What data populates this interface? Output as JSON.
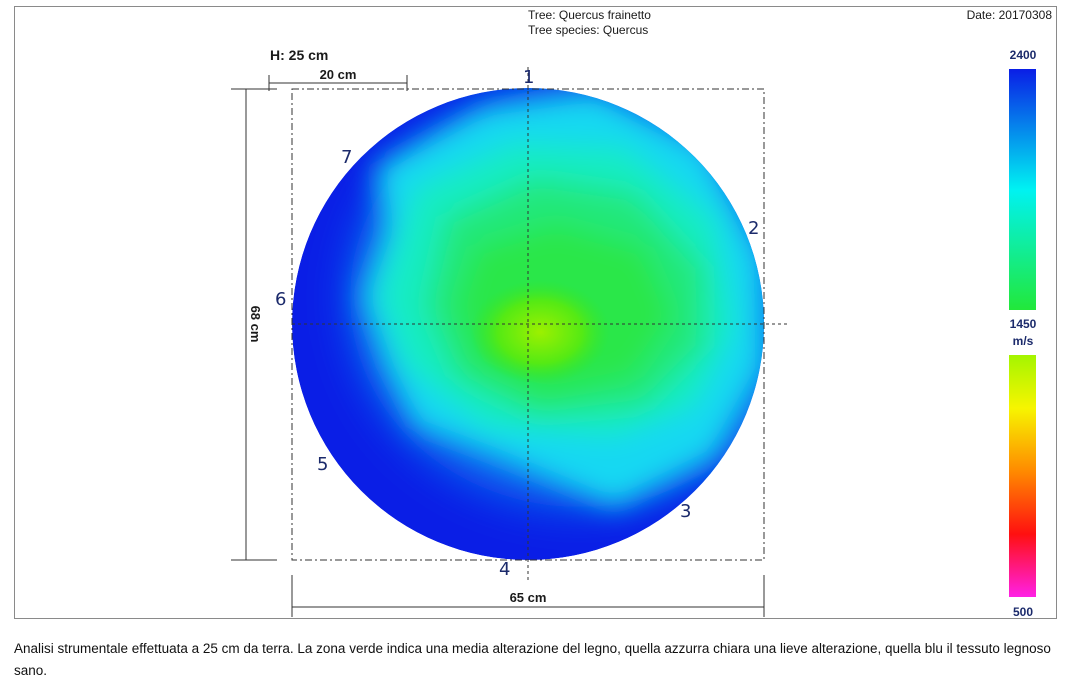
{
  "header": {
    "tree_label": "Tree: Quercus frainetto",
    "species_label": "Tree species: Quercus",
    "date_label": "Date: 20170308"
  },
  "dimensions": {
    "height_label": "H: 25 cm",
    "scale_label": "20 cm",
    "vertical_label": "68 cm",
    "horizontal_label": "65 cm"
  },
  "sensors": [
    {
      "label": "1"
    },
    {
      "label": "2"
    },
    {
      "label": "3"
    },
    {
      "label": "4"
    },
    {
      "label": "5"
    },
    {
      "label": "6"
    },
    {
      "label": "7"
    }
  ],
  "legend": {
    "max": "2400",
    "mid": "1450",
    "unit": "m/s",
    "min": "500",
    "colors": {
      "dark_blue": "#0a1ee6",
      "cyan": "#00f2f2",
      "green": "#22e83a",
      "yellow_green": "#a4f500",
      "yellow": "#f7f500",
      "orange": "#ff8a00",
      "red": "#ff1010",
      "magenta": "#ff20e6"
    }
  },
  "caption": "Analisi strumentale effettuata a 25 cm da terra. La zona verde indica una media alterazione del legno, quella azzurra chiara una lieve alterazione, quella blu il tessuto legnoso sano."
}
